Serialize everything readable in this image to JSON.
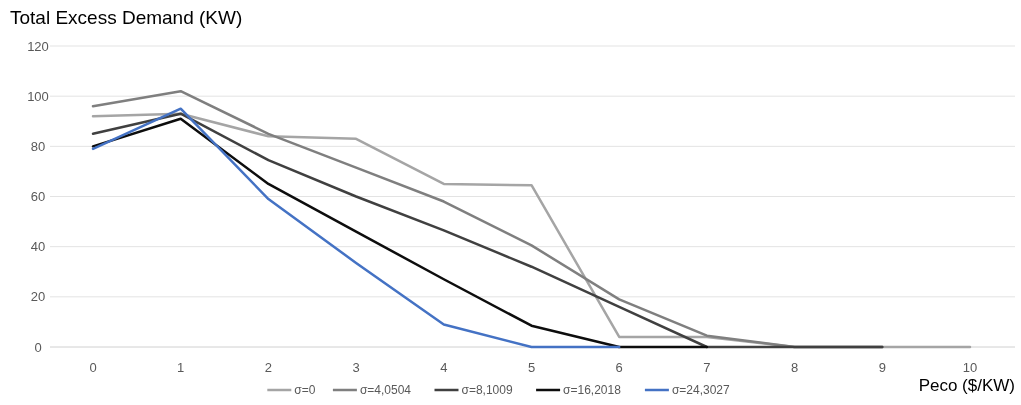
{
  "chart_data": {
    "type": "line",
    "ylabel": "Total Excess Demand (KW)",
    "xlabel": "Peco ($/KW)",
    "categories": [
      "0",
      "1",
      "2",
      "3",
      "4",
      "5",
      "6",
      "7",
      "8",
      "9",
      "10"
    ],
    "series": [
      {
        "name": "σ=0",
        "color": "#a5a5a5",
        "values": [
          92,
          93,
          84,
          83,
          65,
          64.5,
          4,
          4,
          0,
          0,
          0
        ]
      },
      {
        "name": "σ=4,0504",
        "color": "#7f7f7f",
        "values": [
          96,
          102,
          85,
          71.5,
          58,
          40.5,
          19,
          4.5,
          0,
          0,
          null
        ]
      },
      {
        "name": "σ=8,1009",
        "color": "#404040",
        "values": [
          85,
          93,
          74.5,
          60,
          46.5,
          32,
          16,
          0,
          0,
          0,
          null
        ]
      },
      {
        "name": "σ=16,2018",
        "color": "#0d0d0d",
        "values": [
          80,
          91,
          65,
          46,
          27,
          8.5,
          0,
          0,
          null,
          null,
          null
        ]
      },
      {
        "name": "σ=24,3027",
        "color": "#4472c4",
        "values": [
          79,
          95,
          59,
          33.5,
          9,
          0,
          0,
          null,
          null,
          null,
          null
        ]
      }
    ],
    "ylim": [
      0,
      120
    ],
    "yticks": [
      0,
      20,
      40,
      60,
      80,
      100,
      120
    ],
    "grid": "y",
    "legend": "bottom",
    "marker": "none",
    "line_style": "solid"
  }
}
